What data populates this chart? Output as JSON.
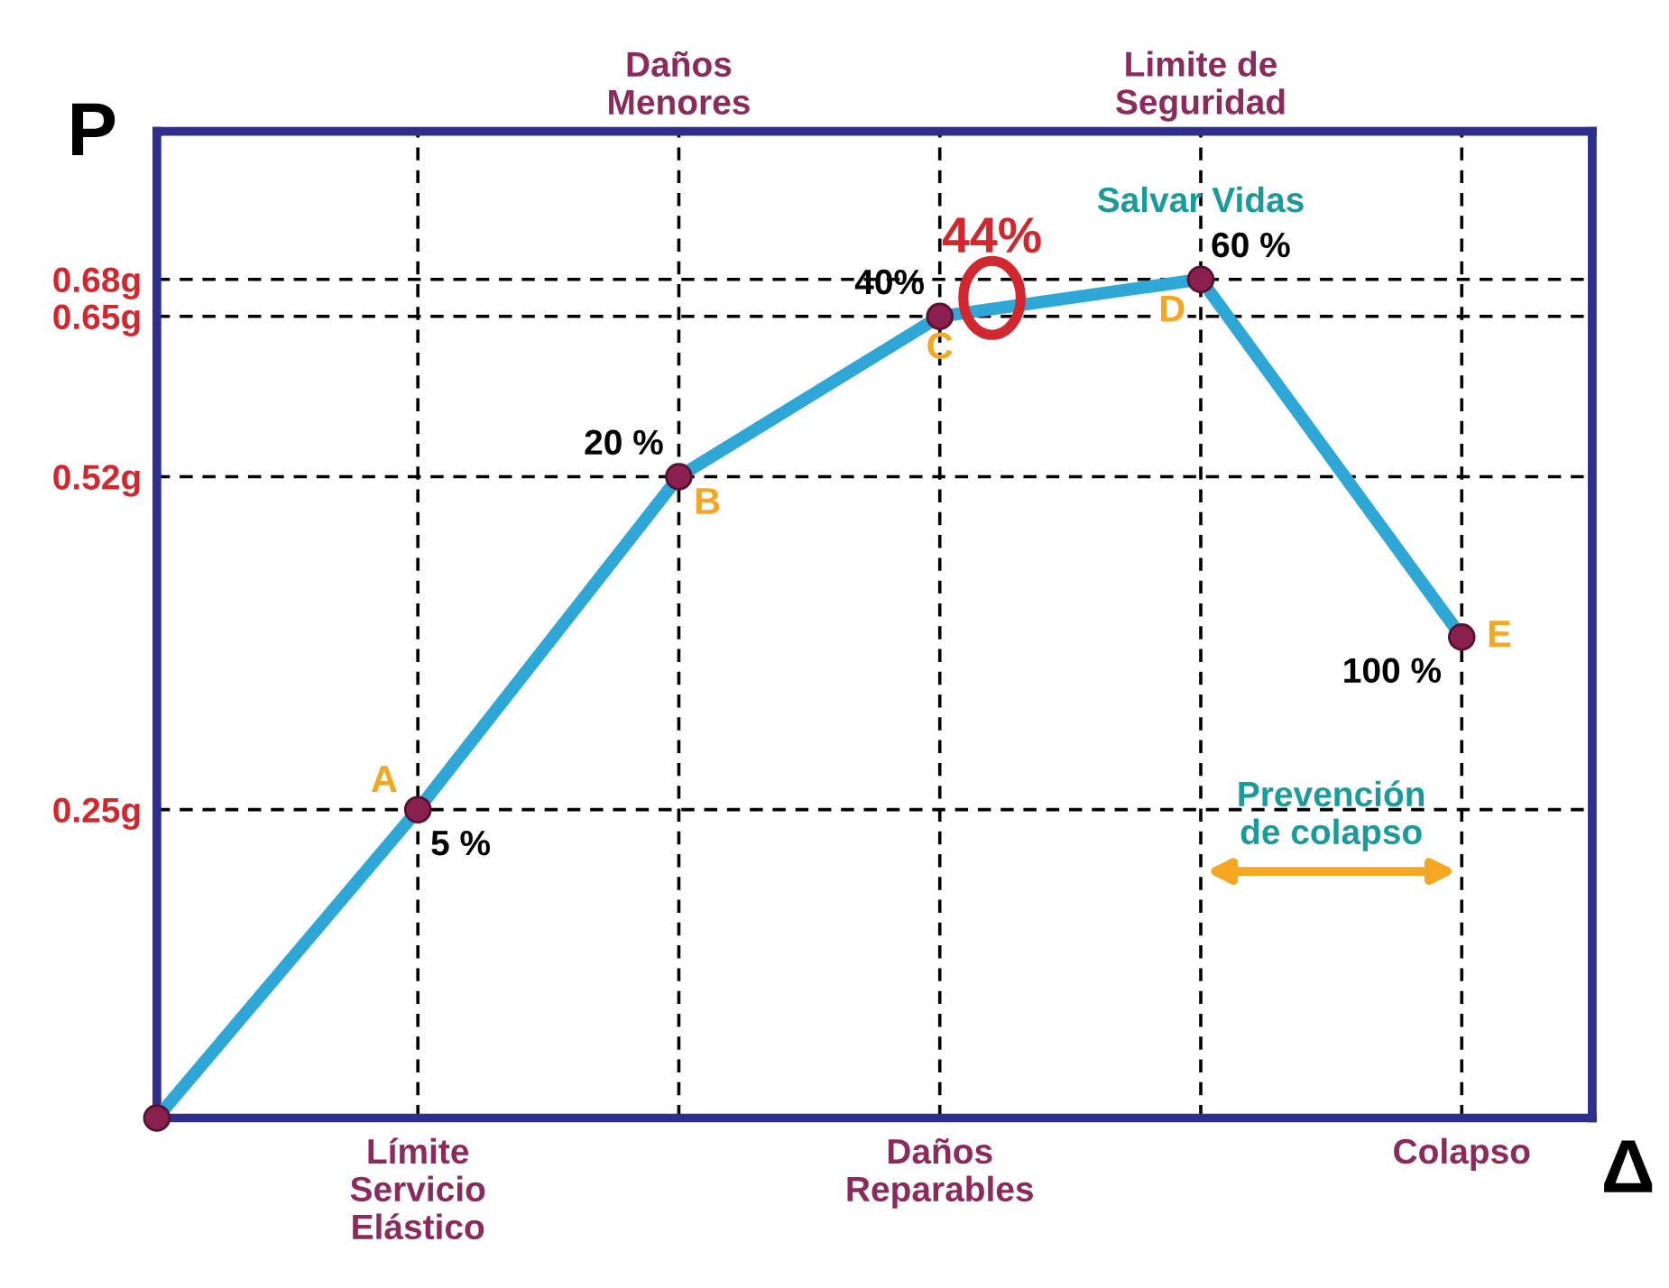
{
  "chart_data": {
    "type": "line",
    "xlabel": "Δ",
    "ylabel": "P",
    "categories": [
      null,
      "Límite\nServicio\nElástico",
      null,
      "Daños\nReparables",
      null,
      "Colapso"
    ],
    "series": [
      {
        "color": "#2ea6d6",
        "values": [
          0,
          0.25,
          0.52,
          0.65,
          0.68,
          0.39
        ]
      }
    ],
    "marker": "circle",
    "line_style": "solid",
    "grid": true,
    "ylim": [
      0,
      0.8
    ],
    "yticks": [
      {
        "value": 0.25,
        "label": "0.25g"
      },
      {
        "value": 0.52,
        "label": "0.52g"
      },
      {
        "value": 0.65,
        "label": "0.65g"
      },
      {
        "value": 0.68,
        "label": "0.68g"
      }
    ],
    "annotations": [
      "A",
      "B",
      "C",
      "D",
      "E",
      "5 %",
      "20 %",
      "40%",
      "60 %",
      "100 %",
      "Salvar Vidas",
      "44%",
      "Prevención\nde colapso",
      "Daños\nMenores",
      "Limite de\nSeguridad"
    ]
  }
}
